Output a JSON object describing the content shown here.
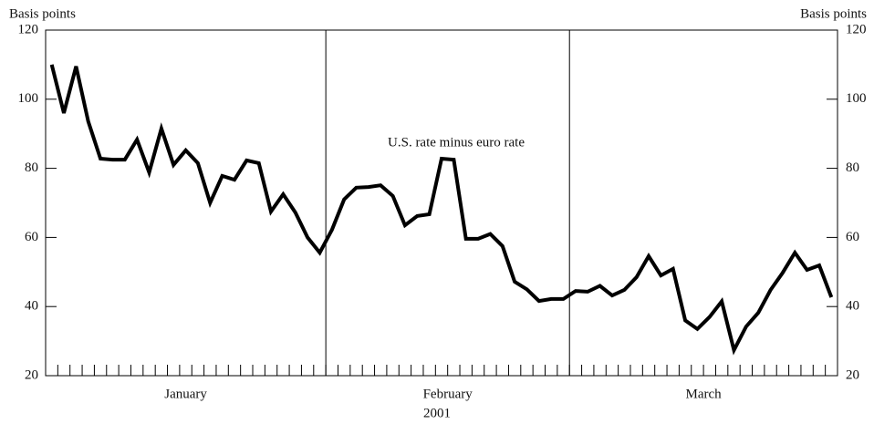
{
  "chart_data": {
    "type": "line",
    "y_label": "Basis points",
    "y2_label": "Basis points",
    "x_label": "2001",
    "annotation": "U.S. rate minus euro rate",
    "months": [
      {
        "label": "January",
        "count": 23
      },
      {
        "label": "February",
        "count": 20
      },
      {
        "label": "March",
        "count": 22
      }
    ],
    "values": [
      110,
      96,
      109.5,
      93.6,
      82.8,
      82.5,
      82.5,
      88.3,
      78.8,
      91.5,
      81,
      85.2,
      81.5,
      70,
      77.8,
      76.7,
      82.3,
      81.5,
      67.5,
      72.5,
      67.2,
      60,
      55.6,
      62.2,
      71,
      74.4,
      74.6,
      75.1,
      72,
      63.5,
      66.2,
      66.7,
      82.8,
      82.5,
      59.6,
      59.6,
      61,
      57.5,
      47.2,
      45,
      41.6,
      42.2,
      42.2,
      44.5,
      44.3,
      46,
      43.2,
      44.8,
      48.5,
      54.6,
      49,
      50.9,
      36,
      33.5,
      37,
      41.5,
      27.4,
      34.2,
      38.2,
      44.8,
      49.8,
      55.6,
      50.6,
      51.9,
      42.7
    ],
    "color": "#000000",
    "ylim": [
      20,
      120
    ],
    "yticks": [
      20,
      40,
      60,
      80,
      100,
      120
    ],
    "y2lim": [
      20,
      120
    ],
    "y2ticks": [
      20,
      40,
      60,
      80,
      100,
      120
    ]
  }
}
